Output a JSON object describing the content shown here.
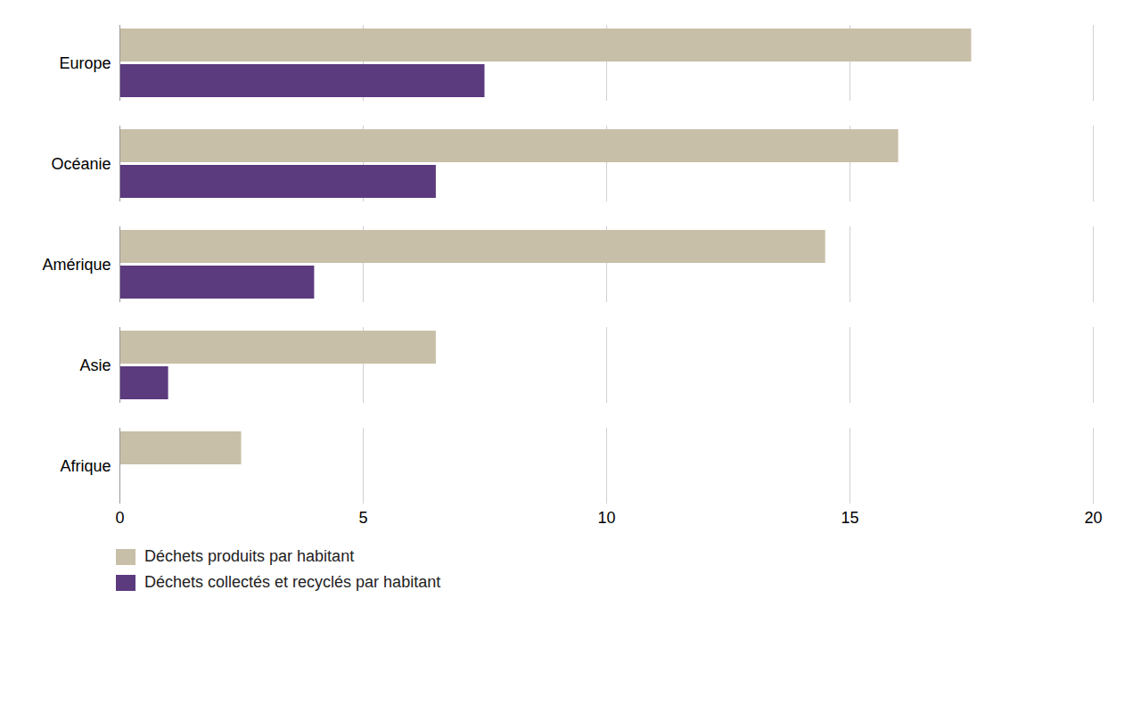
{
  "chart_data": {
    "type": "bar",
    "orientation": "horizontal",
    "categories": [
      "Europe",
      "Océanie",
      "Amérique",
      "Asie",
      "Afrique"
    ],
    "series": [
      {
        "name": "Déchets produits par habitant",
        "color": "#c8bfa8",
        "values": [
          17.5,
          16.0,
          14.5,
          6.5,
          2.5
        ]
      },
      {
        "name": "Déchets collectés et recyclés par habitant",
        "color": "#5b3a7e",
        "values": [
          7.5,
          6.5,
          4.0,
          1.0,
          0.0
        ]
      }
    ],
    "xlim": [
      0,
      20
    ],
    "xticks": [
      0,
      5,
      10,
      15,
      20
    ],
    "grid": true,
    "legend": "bottom left"
  }
}
